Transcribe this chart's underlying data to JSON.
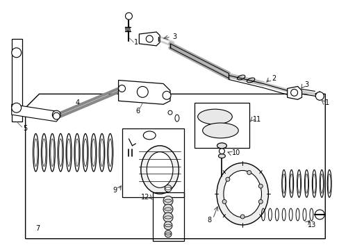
{
  "bg": "#ffffff",
  "lc": "#000000",
  "fig_width": 4.89,
  "fig_height": 3.6,
  "dpi": 100
}
